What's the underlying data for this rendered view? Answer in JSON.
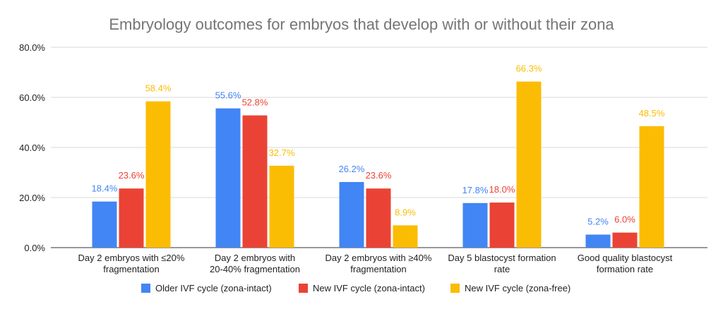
{
  "chart_data": {
    "type": "bar",
    "title": "Embryology outcomes for embryos that develop with or without their zona",
    "categories": [
      [
        "Day 2 embryos with ≤20%",
        "fragmentation"
      ],
      [
        "Day 2 embryos with",
        "20-40% fragmentation"
      ],
      [
        "Day 2 embryos with ≥40%",
        "fragmentation"
      ],
      [
        "Day 5 blastocyst formation",
        "rate"
      ],
      [
        "Good quality blastocyst",
        "formation rate"
      ]
    ],
    "series": [
      {
        "name": "Older IVF cycle (zona-intact)",
        "color": "#4285F4",
        "values": [
          18.4,
          55.6,
          26.2,
          17.8,
          5.2
        ],
        "labels": [
          "18.4%",
          "55.6%",
          "26.2%",
          "17.8%",
          "5.2%"
        ]
      },
      {
        "name": "New IVF cycle (zona-intact)",
        "color": "#EA4335",
        "values": [
          23.6,
          52.8,
          23.6,
          18.0,
          6.0
        ],
        "labels": [
          "23.6%",
          "52.8%",
          "23.6%",
          "18.0%",
          "6.0%"
        ]
      },
      {
        "name": "New IVF cycle (zona-free)",
        "color": "#FBBC04",
        "values": [
          58.4,
          32.7,
          8.9,
          66.3,
          48.5
        ],
        "labels": [
          "58.4%",
          "32.7%",
          "8.9%",
          "66.3%",
          "48.5%"
        ]
      }
    ],
    "ylim": [
      0,
      80
    ],
    "yticks": [
      0,
      20,
      40,
      60,
      80
    ],
    "ytick_labels": [
      "0.0%",
      "20.0%",
      "40.0%",
      "60.0%",
      "80.0%"
    ],
    "grid": true,
    "legend": "bottom",
    "xlabel": "",
    "ylabel": ""
  }
}
